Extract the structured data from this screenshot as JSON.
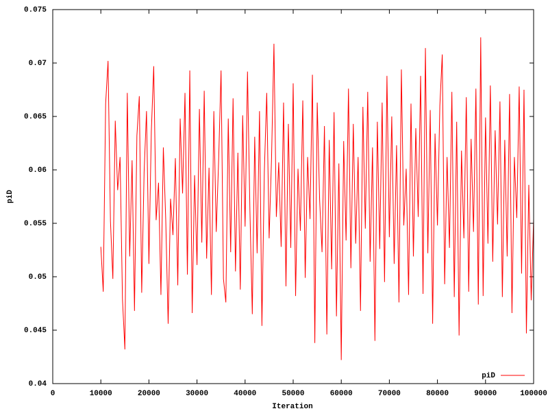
{
  "chart_data": {
    "type": "line",
    "x_label": "Iteration",
    "y_label": "piD",
    "xlim": [
      0,
      100000
    ],
    "ylim": [
      0.04,
      0.075
    ],
    "xticks": [
      0,
      10000,
      20000,
      30000,
      40000,
      50000,
      60000,
      70000,
      80000,
      90000,
      100000
    ],
    "yticks": [
      0.04,
      0.045,
      0.05,
      0.055,
      0.06,
      0.065,
      0.07,
      0.075
    ],
    "legend": "bottom-right",
    "series": [
      {
        "name": "piD",
        "color": "#ff0000",
        "x": [
          10000,
          10500,
          11000,
          11500,
          12000,
          12500,
          13000,
          13500,
          14000,
          14500,
          15000,
          15500,
          16000,
          16500,
          17000,
          17500,
          18000,
          18500,
          19000,
          19500,
          20000,
          20500,
          21000,
          21500,
          22000,
          22500,
          23000,
          23500,
          24000,
          24500,
          25000,
          25500,
          26000,
          26500,
          27000,
          27500,
          28000,
          28500,
          29000,
          29500,
          30000,
          30500,
          31000,
          31500,
          32000,
          32500,
          33000,
          33500,
          34000,
          34500,
          35000,
          35500,
          36000,
          36500,
          37000,
          37500,
          38000,
          38500,
          39000,
          39500,
          40000,
          40500,
          41000,
          41500,
          42000,
          42500,
          43000,
          43500,
          44000,
          44500,
          45000,
          45500,
          46000,
          46500,
          47000,
          47500,
          48000,
          48500,
          49000,
          49500,
          50000,
          50500,
          51000,
          51500,
          52000,
          52500,
          53000,
          53500,
          54000,
          54500,
          55000,
          55500,
          56000,
          56500,
          57000,
          57500,
          58000,
          58500,
          59000,
          59500,
          60000,
          60500,
          61000,
          61500,
          62000,
          62500,
          63000,
          63500,
          64000,
          64500,
          65000,
          65500,
          66000,
          66500,
          67000,
          67500,
          68000,
          68500,
          69000,
          69500,
          70000,
          70500,
          71000,
          71500,
          72000,
          72500,
          73000,
          73500,
          74000,
          74500,
          75000,
          75500,
          76000,
          76500,
          77000,
          77500,
          78000,
          78500,
          79000,
          79500,
          80000,
          80500,
          81000,
          81500,
          82000,
          82500,
          83000,
          83500,
          84000,
          84500,
          85000,
          85500,
          86000,
          86500,
          87000,
          87500,
          88000,
          88500,
          89000,
          89500,
          90000,
          90500,
          91000,
          91500,
          92000,
          92500,
          93000,
          93500,
          94000,
          94500,
          95000,
          95500,
          96000,
          96500,
          97000,
          97500,
          98000,
          98500,
          99000,
          99500,
          100000
        ],
        "values": [
          0.0528,
          0.0486,
          0.0662,
          0.0702,
          0.0552,
          0.0498,
          0.0646,
          0.0581,
          0.0612,
          0.0479,
          0.0432,
          0.0672,
          0.0519,
          0.0609,
          0.0468,
          0.0632,
          0.0669,
          0.0485,
          0.0598,
          0.0655,
          0.0512,
          0.0636,
          0.0697,
          0.0553,
          0.0588,
          0.0483,
          0.0621,
          0.0553,
          0.0456,
          0.0573,
          0.0539,
          0.0611,
          0.0492,
          0.0648,
          0.0578,
          0.0672,
          0.0502,
          0.0693,
          0.0466,
          0.0595,
          0.0511,
          0.0657,
          0.0532,
          0.0674,
          0.0517,
          0.0602,
          0.0483,
          0.0655,
          0.0542,
          0.0609,
          0.0693,
          0.0498,
          0.0476,
          0.0648,
          0.0523,
          0.0667,
          0.0505,
          0.0616,
          0.0488,
          0.0651,
          0.0547,
          0.0692,
          0.0563,
          0.0465,
          0.0631,
          0.0522,
          0.0655,
          0.0454,
          0.0598,
          0.0672,
          0.0536,
          0.0611,
          0.0718,
          0.0556,
          0.0607,
          0.0528,
          0.0663,
          0.0491,
          0.0643,
          0.0527,
          0.0681,
          0.0482,
          0.0601,
          0.0543,
          0.0665,
          0.0499,
          0.0612,
          0.0554,
          0.0689,
          0.0438,
          0.0663,
          0.0572,
          0.0523,
          0.0641,
          0.0446,
          0.0628,
          0.0507,
          0.0654,
          0.0463,
          0.0606,
          0.0422,
          0.0627,
          0.0534,
          0.0676,
          0.0508,
          0.0643,
          0.0531,
          0.0612,
          0.0468,
          0.0659,
          0.0545,
          0.0673,
          0.0514,
          0.0621,
          0.044,
          0.0645,
          0.0526,
          0.0663,
          0.0495,
          0.0688,
          0.0537,
          0.065,
          0.0512,
          0.0623,
          0.0476,
          0.0694,
          0.0548,
          0.0601,
          0.0483,
          0.0662,
          0.0519,
          0.0639,
          0.0556,
          0.0688,
          0.0484,
          0.0714,
          0.0522,
          0.0656,
          0.0456,
          0.0634,
          0.0548,
          0.066,
          0.0708,
          0.0493,
          0.0612,
          0.0527,
          0.0673,
          0.0481,
          0.0645,
          0.0445,
          0.0618,
          0.0536,
          0.0668,
          0.0486,
          0.0629,
          0.0542,
          0.0676,
          0.0474,
          0.0724,
          0.0482,
          0.0649,
          0.0531,
          0.0679,
          0.0514,
          0.0637,
          0.0549,
          0.0664,
          0.0481,
          0.0628,
          0.0519,
          0.0671,
          0.0466,
          0.0612,
          0.0555,
          0.0678,
          0.0503,
          0.0675,
          0.0447,
          0.0586,
          0.0478,
          0.0554
        ]
      }
    ]
  }
}
